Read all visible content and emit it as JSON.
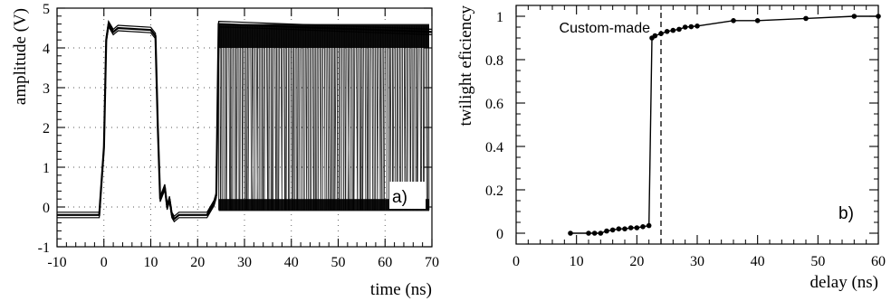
{
  "chart_data": [
    {
      "type": "line",
      "panel_label": "a)",
      "xlabel": "time (ns)",
      "ylabel": "amplitude (V)",
      "xlim": [
        -10,
        70
      ],
      "ylim": [
        -1,
        5
      ],
      "xticks": [
        -10,
        0,
        10,
        20,
        30,
        40,
        50,
        60,
        70
      ],
      "yticks": [
        -1,
        0,
        1,
        2,
        3,
        4,
        5
      ],
      "grid": "dotted",
      "series": [
        {
          "x": [
            -10,
            -1,
            0,
            0.5,
            1,
            2,
            3,
            10,
            11,
            11.5,
            12,
            13,
            13.5,
            14,
            14.5,
            15,
            16,
            20,
            22,
            23,
            23.5,
            24,
            24.5,
            70
          ],
          "y": [
            -0.2,
            -0.2,
            1.5,
            4.2,
            4.6,
            4.4,
            4.5,
            4.45,
            4.3,
            2.0,
            0.2,
            0.5,
            0.0,
            0.2,
            -0.2,
            -0.3,
            -0.2,
            -0.2,
            -0.2,
            0.0,
            0.1,
            0.3,
            4.6,
            4.4
          ]
        }
      ],
      "band": {
        "x_range": [
          24.5,
          70
        ],
        "high_level": [
          4.0,
          4.6
        ],
        "low_level": [
          -0.1,
          0.2
        ],
        "description_values": "overlaid persistence traces toggling between ~0 V and ~4.4 V"
      }
    },
    {
      "type": "line",
      "panel_label": "b)",
      "xlabel": "delay (ns)",
      "ylabel": "twilight eficiency",
      "xlim": [
        0,
        60
      ],
      "ylim": [
        -0.05,
        1.05
      ],
      "xticks": [
        0,
        10,
        20,
        30,
        40,
        50,
        60
      ],
      "yticks": [
        0,
        0.2,
        0.4,
        0.6,
        0.8,
        1
      ],
      "annotation": {
        "text": "Custom-made",
        "x": 24
      },
      "series": [
        {
          "x": [
            9,
            12,
            13,
            14,
            15,
            16,
            17,
            18,
            19,
            20,
            21,
            22,
            22.5,
            23,
            24,
            25,
            26,
            27,
            28,
            29,
            30,
            36,
            40,
            48,
            56,
            60
          ],
          "y": [
            0.0,
            0.0,
            0.0,
            0.0,
            0.01,
            0.015,
            0.02,
            0.02,
            0.025,
            0.025,
            0.03,
            0.035,
            0.9,
            0.91,
            0.92,
            0.93,
            0.935,
            0.94,
            0.95,
            0.952,
            0.955,
            0.98,
            0.98,
            0.99,
            1.0,
            1.0
          ]
        }
      ]
    }
  ]
}
